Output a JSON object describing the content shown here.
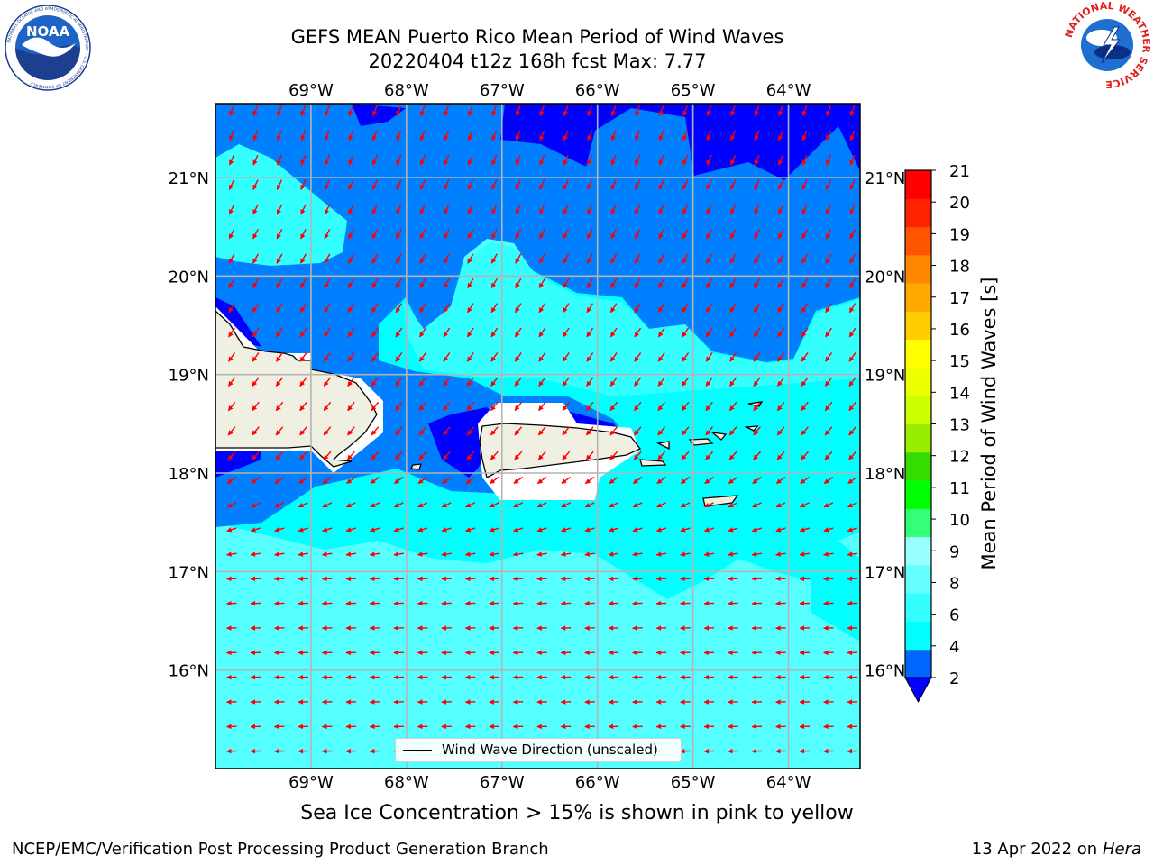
{
  "header": {
    "title_line1": "GEFS MEAN Puerto Rico Mean Period of Wind Waves",
    "title_line2": "20220404 t12z 168h fcst   Max: 7.77"
  },
  "logos": {
    "left": {
      "name": "noaa-logo",
      "text": "NOAA",
      "ring_text": "NATIONAL OCEANIC AND ATMOSPHERIC ADMINISTRATION • U.S. DEPARTMENT OF COMMERCE"
    },
    "right": {
      "name": "nws-logo",
      "ring_text": "NATIONAL WEATHER SERVICE"
    }
  },
  "map": {
    "lon_ticks": [
      "69°W",
      "68°W",
      "67°W",
      "66°W",
      "65°W",
      "64°W"
    ],
    "lat_ticks": [
      "21°N",
      "20°N",
      "19°N",
      "18°N",
      "17°N",
      "16°N"
    ],
    "lon_values": [
      -69,
      -68,
      -67,
      -66,
      -65,
      -64
    ],
    "lat_values": [
      21,
      20,
      19,
      18,
      17,
      16
    ],
    "lon_range": [
      -70,
      -63.25
    ],
    "lat_range": [
      15,
      21.75
    ],
    "grid": true,
    "land_color": "#efefe2",
    "arrow_color": "#ff0000",
    "legend_label": "Wind Wave Direction (unscaled)"
  },
  "colorbar": {
    "label": "Mean Period of Wind Waves [s]",
    "ticks": [
      "2",
      "4",
      "6",
      "8",
      "9",
      "10",
      "11",
      "12",
      "13",
      "14",
      "15",
      "16",
      "17",
      "18",
      "19",
      "20",
      "21"
    ],
    "colors": [
      "#0066ff",
      "#00ffff",
      "#33ffff",
      "#66ffff",
      "#99ffff",
      "#33ff77",
      "#00ff00",
      "#33dd00",
      "#99ee00",
      "#ccff00",
      "#eeff00",
      "#ffff00",
      "#ffcc00",
      "#ffaa00",
      "#ff8800",
      "#ff5500",
      "#ff2200",
      "#ff0000"
    ],
    "extend_low_color": "#0000ff"
  },
  "note": "Sea Ice Concentration > 15% is shown in pink to yellow",
  "footer": {
    "left": "NCEP/EMC/Verification Post Processing Product Generation Branch",
    "right_prefix": "13 Apr 2022 on ",
    "right_host": "Hera"
  }
}
